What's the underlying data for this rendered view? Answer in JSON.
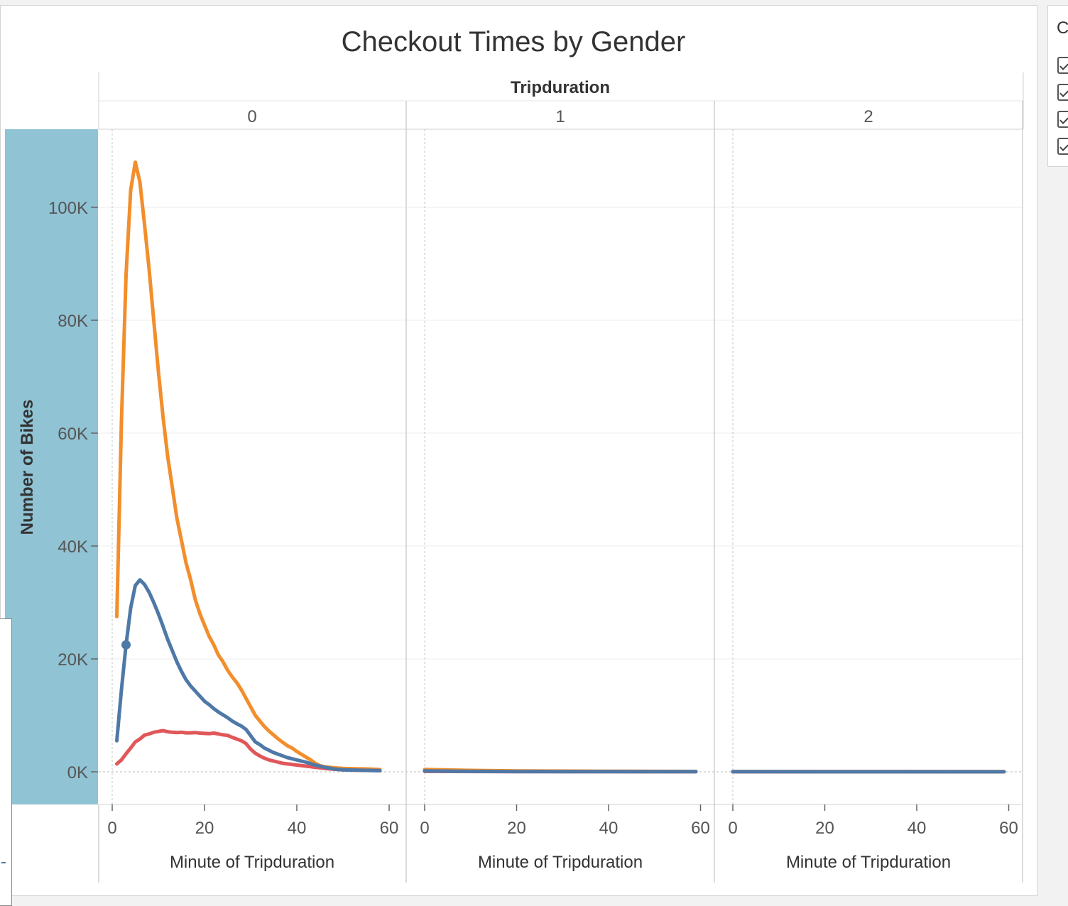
{
  "chart_data": {
    "type": "line",
    "title": "Checkout Times by Gender",
    "column_header": "Tripduration",
    "panels": [
      {
        "label": "0",
        "xlabel": "Minute of Tripduration"
      },
      {
        "label": "1",
        "xlabel": "Minute of Tripduration"
      },
      {
        "label": "2",
        "xlabel": "Minute of Tripduration"
      }
    ],
    "ylabel": "Number of Bikes",
    "ylim": [
      0,
      110000
    ],
    "yticks": [
      0,
      20000,
      40000,
      60000,
      80000,
      100000
    ],
    "ytick_labels": [
      "0K",
      "20K",
      "40K",
      "60K",
      "80K",
      "100K"
    ],
    "xlim": [
      0,
      60
    ],
    "xticks": [
      0,
      20,
      40,
      60
    ],
    "xtick_labels": [
      "0",
      "20",
      "40",
      "60"
    ],
    "grid": true,
    "highlighted_point": {
      "series": 1,
      "panel": 0,
      "x": 3,
      "y": 22500
    },
    "series": [
      {
        "color": "#f28e2b",
        "panels": [
          [
            [
              1,
              27500
            ],
            [
              2,
              62000
            ],
            [
              3,
              88000
            ],
            [
              4,
              103000
            ],
            [
              5,
              108000
            ],
            [
              6,
              104500
            ],
            [
              7,
              97000
            ],
            [
              8,
              89000
            ],
            [
              9,
              80000
            ],
            [
              10,
              71000
            ],
            [
              11,
              63000
            ],
            [
              12,
              56000
            ],
            [
              13,
              50500
            ],
            [
              14,
              45000
            ],
            [
              15,
              41000
            ],
            [
              16,
              37000
            ],
            [
              17,
              34000
            ],
            [
              18,
              30500
            ],
            [
              19,
              28000
            ],
            [
              20,
              26000
            ],
            [
              21,
              24000
            ],
            [
              22,
              22500
            ],
            [
              23,
              20700
            ],
            [
              24,
              19500
            ],
            [
              25,
              18000
            ],
            [
              26,
              16800
            ],
            [
              27,
              15800
            ],
            [
              28,
              14500
            ],
            [
              29,
              13000
            ],
            [
              30,
              11500
            ],
            [
              31,
              10000
            ],
            [
              32,
              9000
            ],
            [
              33,
              8000
            ],
            [
              34,
              7200
            ],
            [
              35,
              6500
            ],
            [
              36,
              5800
            ],
            [
              37,
              5200
            ],
            [
              38,
              4600
            ],
            [
              39,
              4200
            ],
            [
              40,
              3600
            ],
            [
              41,
              3100
            ],
            [
              42,
              2600
            ],
            [
              43,
              2100
            ],
            [
              44,
              1500
            ],
            [
              45,
              1100
            ],
            [
              46,
              900
            ],
            [
              48,
              700
            ],
            [
              50,
              600
            ],
            [
              52,
              550
            ],
            [
              55,
              500
            ],
            [
              58,
              400
            ]
          ],
          [
            [
              0,
              400
            ],
            [
              10,
              250
            ],
            [
              20,
              150
            ],
            [
              30,
              120
            ],
            [
              40,
              100
            ],
            [
              50,
              80
            ],
            [
              59,
              60
            ]
          ],
          [
            [
              0,
              40
            ],
            [
              20,
              30
            ],
            [
              40,
              25
            ],
            [
              59,
              20
            ]
          ]
        ]
      },
      {
        "color": "#4e79a7",
        "panels": [
          [
            [
              1,
              5500
            ],
            [
              2,
              14500
            ],
            [
              3,
              22500
            ],
            [
              4,
              29000
            ],
            [
              5,
              33000
            ],
            [
              6,
              34000
            ],
            [
              7,
              33200
            ],
            [
              8,
              31800
            ],
            [
              9,
              30000
            ],
            [
              10,
              28000
            ],
            [
              11,
              25800
            ],
            [
              12,
              23500
            ],
            [
              13,
              21500
            ],
            [
              14,
              19500
            ],
            [
              15,
              17800
            ],
            [
              16,
              16300
            ],
            [
              17,
              15200
            ],
            [
              18,
              14300
            ],
            [
              19,
              13400
            ],
            [
              20,
              12500
            ],
            [
              21,
              11900
            ],
            [
              22,
              11200
            ],
            [
              23,
              10600
            ],
            [
              24,
              10100
            ],
            [
              25,
              9600
            ],
            [
              26,
              9000
            ],
            [
              27,
              8500
            ],
            [
              28,
              8100
            ],
            [
              29,
              7500
            ],
            [
              30,
              6400
            ],
            [
              31,
              5300
            ],
            [
              32,
              4800
            ],
            [
              33,
              4200
            ],
            [
              34,
              3800
            ],
            [
              35,
              3400
            ],
            [
              36,
              3100
            ],
            [
              37,
              2800
            ],
            [
              38,
              2500
            ],
            [
              40,
              2100
            ],
            [
              42,
              1700
            ],
            [
              44,
              1200
            ],
            [
              46,
              800
            ],
            [
              48,
              500
            ],
            [
              50,
              350
            ],
            [
              55,
              250
            ],
            [
              58,
              200
            ]
          ],
          [
            [
              0,
              150
            ],
            [
              10,
              80
            ],
            [
              20,
              50
            ],
            [
              30,
              40
            ],
            [
              40,
              30
            ],
            [
              50,
              25
            ],
            [
              59,
              20
            ]
          ],
          [
            [
              0,
              20
            ],
            [
              20,
              15
            ],
            [
              40,
              12
            ],
            [
              59,
              10
            ]
          ]
        ]
      },
      {
        "color": "#e15759",
        "panels": [
          [
            [
              1,
              1400
            ],
            [
              2,
              2100
            ],
            [
              3,
              3200
            ],
            [
              4,
              4200
            ],
            [
              5,
              5300
            ],
            [
              6,
              5800
            ],
            [
              7,
              6500
            ],
            [
              8,
              6700
            ],
            [
              9,
              7000
            ],
            [
              10,
              7150
            ],
            [
              11,
              7300
            ],
            [
              12,
              7100
            ],
            [
              13,
              7000
            ],
            [
              14,
              6950
            ],
            [
              15,
              7000
            ],
            [
              16,
              6900
            ],
            [
              17,
              6900
            ],
            [
              18,
              6950
            ],
            [
              19,
              6850
            ],
            [
              20,
              6800
            ],
            [
              21,
              6750
            ],
            [
              22,
              6850
            ],
            [
              23,
              6700
            ],
            [
              24,
              6550
            ],
            [
              25,
              6450
            ],
            [
              26,
              6100
            ],
            [
              27,
              5800
            ],
            [
              28,
              5500
            ],
            [
              29,
              5000
            ],
            [
              30,
              4000
            ],
            [
              31,
              3300
            ],
            [
              32,
              2800
            ],
            [
              33,
              2400
            ],
            [
              34,
              2100
            ],
            [
              35,
              1900
            ],
            [
              36,
              1700
            ],
            [
              37,
              1500
            ],
            [
              38,
              1400
            ],
            [
              40,
              1200
            ],
            [
              42,
              1000
            ],
            [
              44,
              800
            ],
            [
              46,
              600
            ],
            [
              48,
              450
            ],
            [
              50,
              350
            ],
            [
              55,
              250
            ],
            [
              58,
              200
            ]
          ],
          [
            [
              0,
              80
            ],
            [
              20,
              40
            ],
            [
              40,
              25
            ],
            [
              59,
              15
            ]
          ],
          [
            [
              0,
              10
            ],
            [
              30,
              8
            ],
            [
              59,
              5
            ]
          ]
        ]
      }
    ]
  },
  "legend_panel": {
    "title_fragment": "C",
    "items": 4
  }
}
